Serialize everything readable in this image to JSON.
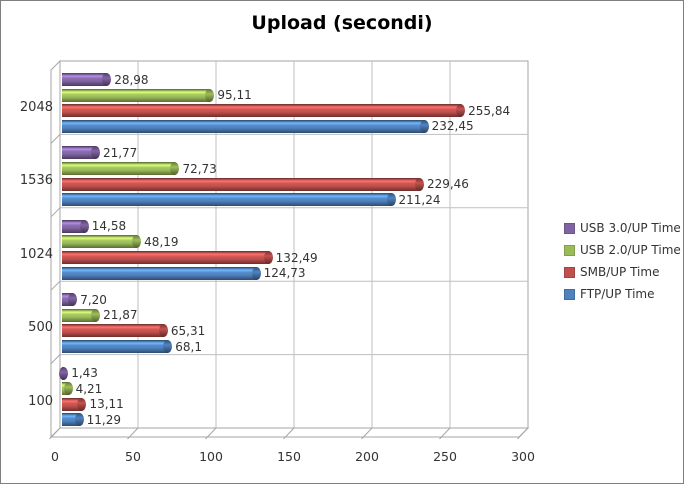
{
  "window": {
    "background": "#FFFFFF",
    "border_color": "#7F7F7F"
  },
  "chart_data": {
    "type": "bar",
    "orientation": "horizontal",
    "style": "3d-cylinder",
    "title": "Upload (secondi)",
    "categories": [
      "2048",
      "1536",
      "1024",
      "500",
      "100"
    ],
    "series": [
      {
        "name": "USB 3.0/UP Time",
        "color": "#8064A2",
        "values": [
          28.98,
          21.77,
          14.58,
          7.2,
          1.43
        ],
        "labels": [
          "28,98",
          "21,77",
          "14,58",
          "7,20",
          "1,43"
        ]
      },
      {
        "name": "USB 2.0/UP Time",
        "color": "#9BBB59",
        "values": [
          95.11,
          72.73,
          48.19,
          21.87,
          4.21
        ],
        "labels": [
          "95,11",
          "72,73",
          "48,19",
          "21,87",
          "4,21"
        ]
      },
      {
        "name": "SMB/UP Time",
        "color": "#C0504D",
        "values": [
          255.84,
          229.46,
          132.49,
          65.31,
          13.11
        ],
        "labels": [
          "255,84",
          "229,46",
          "132,49",
          "65,31",
          "13,11"
        ]
      },
      {
        "name": "FTP/UP Time",
        "color": "#4F81BD",
        "values": [
          232.45,
          211.24,
          124.73,
          68.1,
          11.29
        ],
        "labels": [
          "232,45",
          "211,24",
          "124,73",
          "68,1",
          "11,29"
        ]
      }
    ],
    "x_axis": {
      "min": 0,
      "max": 300,
      "step": 50,
      "tick_labels": [
        "0",
        "50",
        "100",
        "150",
        "200",
        "250",
        "300"
      ]
    },
    "legend": {
      "position": "right"
    },
    "gridlines": true,
    "colors": {
      "grid": "#BFBFBF",
      "wall_border": "#A6A6A6",
      "text": "#333333",
      "title_text": "#000000"
    }
  }
}
